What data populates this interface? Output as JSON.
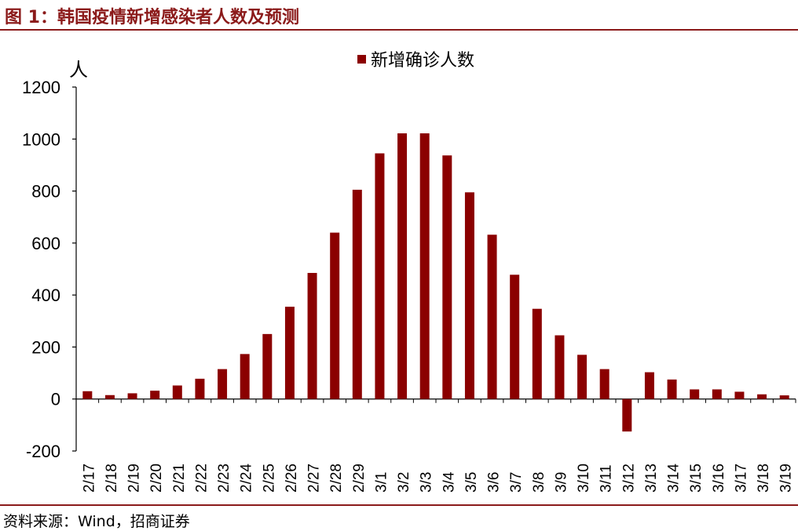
{
  "header": {
    "title": "图 1：韩国疫情新增感染者人数及预测"
  },
  "source": {
    "text": "资料来源：Wind，招商证券"
  },
  "chart_data": {
    "type": "bar",
    "title": "",
    "xlabel": "",
    "ylabel": "人",
    "ylim": [
      -200,
      1200
    ],
    "yticks": [
      -200,
      0,
      200,
      400,
      600,
      800,
      1000,
      1200
    ],
    "grid": false,
    "legend_position": "top-center",
    "bar_color": "#8B0000",
    "categories": [
      "2/17",
      "2/18",
      "2/19",
      "2/20",
      "2/21",
      "2/22",
      "2/23",
      "2/24",
      "2/25",
      "2/26",
      "2/27",
      "2/28",
      "2/29",
      "3/1",
      "3/2",
      "3/3",
      "3/4",
      "3/5",
      "3/6",
      "3/7",
      "3/8",
      "3/9",
      "3/10",
      "3/11",
      "3/12",
      "3/13",
      "3/14",
      "3/15",
      "3/16",
      "3/17",
      "3/18",
      "3/19"
    ],
    "series": [
      {
        "name": "新增确诊人数",
        "values": [
          30,
          15,
          22,
          32,
          52,
          78,
          115,
          173,
          250,
          355,
          485,
          640,
          805,
          945,
          1022,
          1022,
          937,
          795,
          632,
          478,
          347,
          245,
          170,
          115,
          -125,
          103,
          75,
          37,
          37,
          28,
          18,
          14
        ]
      }
    ]
  }
}
